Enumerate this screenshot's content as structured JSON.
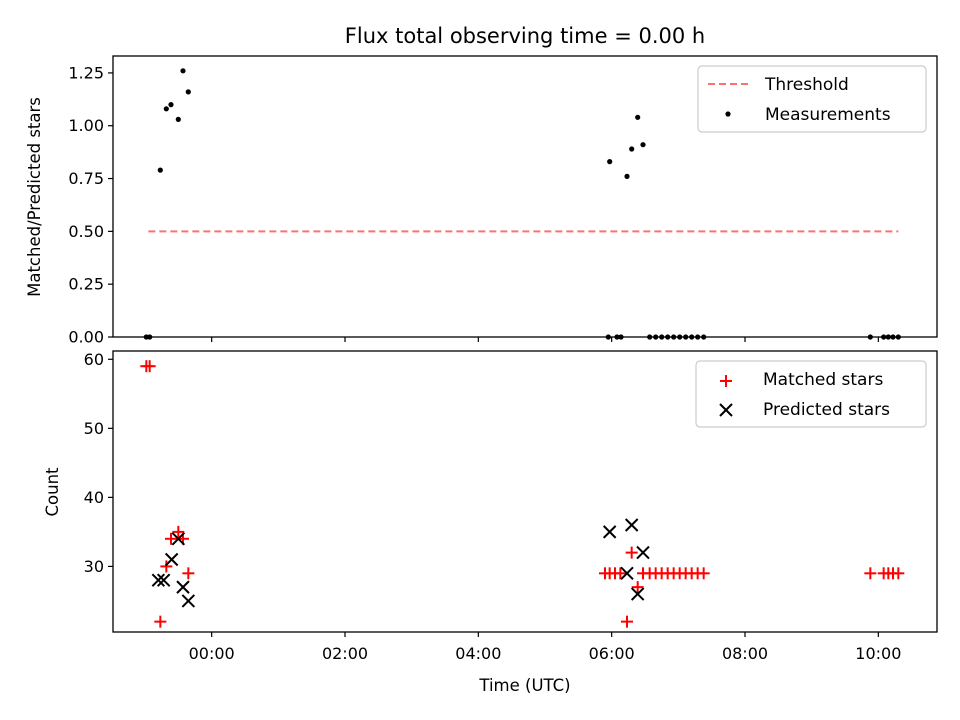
{
  "title": "Flux total observing time = 0.00 h",
  "chart_data": [
    {
      "type": "scatter",
      "ylabel": "Matched/Predicted stars",
      "ylim": [
        0,
        1.33
      ],
      "yticks": [
        0.0,
        0.25,
        0.5,
        0.75,
        1.0,
        1.25
      ],
      "xlim_hours": [
        -1.48,
        10.88
      ],
      "legend_position": "top-right",
      "threshold": {
        "name": "Threshold",
        "value": 0.5,
        "x_start": -0.95,
        "x_end": 10.3,
        "color": "#ff7070"
      },
      "series": [
        {
          "name": "Measurements",
          "color": "#000000",
          "x": [
            -0.98,
            -0.93,
            -0.77,
            -0.68,
            -0.61,
            -0.5,
            -0.43,
            -0.35,
            5.97,
            5.95,
            6.08,
            6.14,
            6.23,
            6.3,
            6.39,
            6.47,
            6.57,
            6.66,
            6.75,
            6.84,
            6.93,
            7.02,
            7.11,
            7.2,
            7.29,
            7.38,
            9.88,
            10.08,
            10.15,
            10.22,
            10.3
          ],
          "y": [
            0.0,
            0.0,
            0.79,
            1.08,
            1.1,
            1.03,
            1.26,
            1.16,
            0.83,
            0.0,
            0.0,
            0.0,
            0.76,
            0.89,
            1.04,
            0.91,
            0.0,
            0.0,
            0.0,
            0.0,
            0.0,
            0.0,
            0.0,
            0.0,
            0.0,
            0.0,
            0.0,
            0.0,
            0.0,
            0.0,
            0.0
          ]
        }
      ]
    },
    {
      "type": "scatter",
      "ylabel": "Count",
      "xlabel": "Time (UTC)",
      "ylim": [
        20.5,
        61.2
      ],
      "yticks": [
        30,
        40,
        50,
        60
      ],
      "xlim_hours": [
        -1.48,
        10.88
      ],
      "xticks": [
        "00:00",
        "02:00",
        "04:00",
        "06:00",
        "08:00",
        "10:00"
      ],
      "xtick_values": [
        0,
        2,
        4,
        6,
        8,
        10
      ],
      "legend_position": "top-right",
      "series": [
        {
          "name": "Matched stars",
          "marker": "plus",
          "color": "#ff0000",
          "x": [
            -0.98,
            -0.93,
            -0.77,
            -0.68,
            -0.61,
            -0.5,
            -0.43,
            -0.35,
            5.9,
            5.97,
            6.05,
            6.13,
            6.23,
            6.3,
            6.39,
            6.47,
            6.57,
            6.66,
            6.75,
            6.84,
            6.93,
            7.02,
            7.11,
            7.2,
            7.29,
            7.38,
            9.88,
            10.08,
            10.15,
            10.22,
            10.3
          ],
          "y": [
            59,
            59,
            22,
            30,
            34,
            35,
            34,
            29,
            29,
            29,
            29,
            29,
            22,
            32,
            27,
            29,
            29,
            29,
            29,
            29,
            29,
            29,
            29,
            29,
            29,
            29,
            29,
            29,
            29,
            29,
            29
          ]
        },
        {
          "name": "Predicted stars",
          "marker": "cross",
          "color": "#000000",
          "x": [
            -0.8,
            -0.72,
            -0.6,
            -0.5,
            -0.43,
            -0.35,
            5.97,
            6.23,
            6.3,
            6.39,
            6.47
          ],
          "y": [
            28,
            28,
            31,
            34,
            27,
            25,
            35,
            29,
            36,
            26,
            32
          ]
        }
      ]
    }
  ]
}
